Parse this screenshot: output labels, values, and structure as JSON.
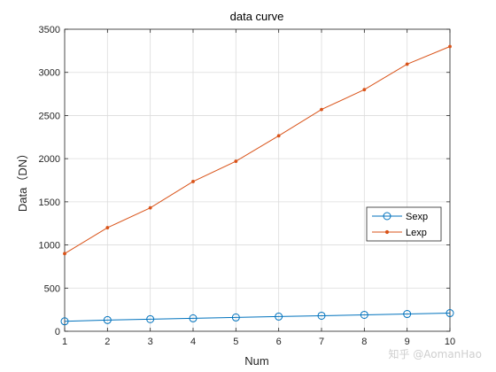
{
  "chart_data": {
    "type": "line",
    "title": "data curve",
    "xlabel": "Num",
    "ylabel": "Data（DN）",
    "xlim": [
      1,
      10
    ],
    "ylim": [
      0,
      3500
    ],
    "xticks": [
      1,
      2,
      3,
      4,
      5,
      6,
      7,
      8,
      9,
      10
    ],
    "yticks": [
      0,
      500,
      1000,
      1500,
      2000,
      2500,
      3000,
      3500
    ],
    "grid": true,
    "legend_position": "right",
    "x": [
      1,
      2,
      3,
      4,
      5,
      6,
      7,
      8,
      9,
      10
    ],
    "series": [
      {
        "name": "Sexp",
        "marker": "circle",
        "color": "#0072BD",
        "values": [
          115,
          130,
          140,
          150,
          160,
          170,
          180,
          190,
          200,
          210
        ]
      },
      {
        "name": "Lexp",
        "marker": "dot",
        "color": "#D95319",
        "values": [
          900,
          1200,
          1430,
          1735,
          1970,
          2265,
          2570,
          2800,
          3095,
          3300
        ]
      }
    ]
  },
  "watermark": "知乎 @AomanHao"
}
